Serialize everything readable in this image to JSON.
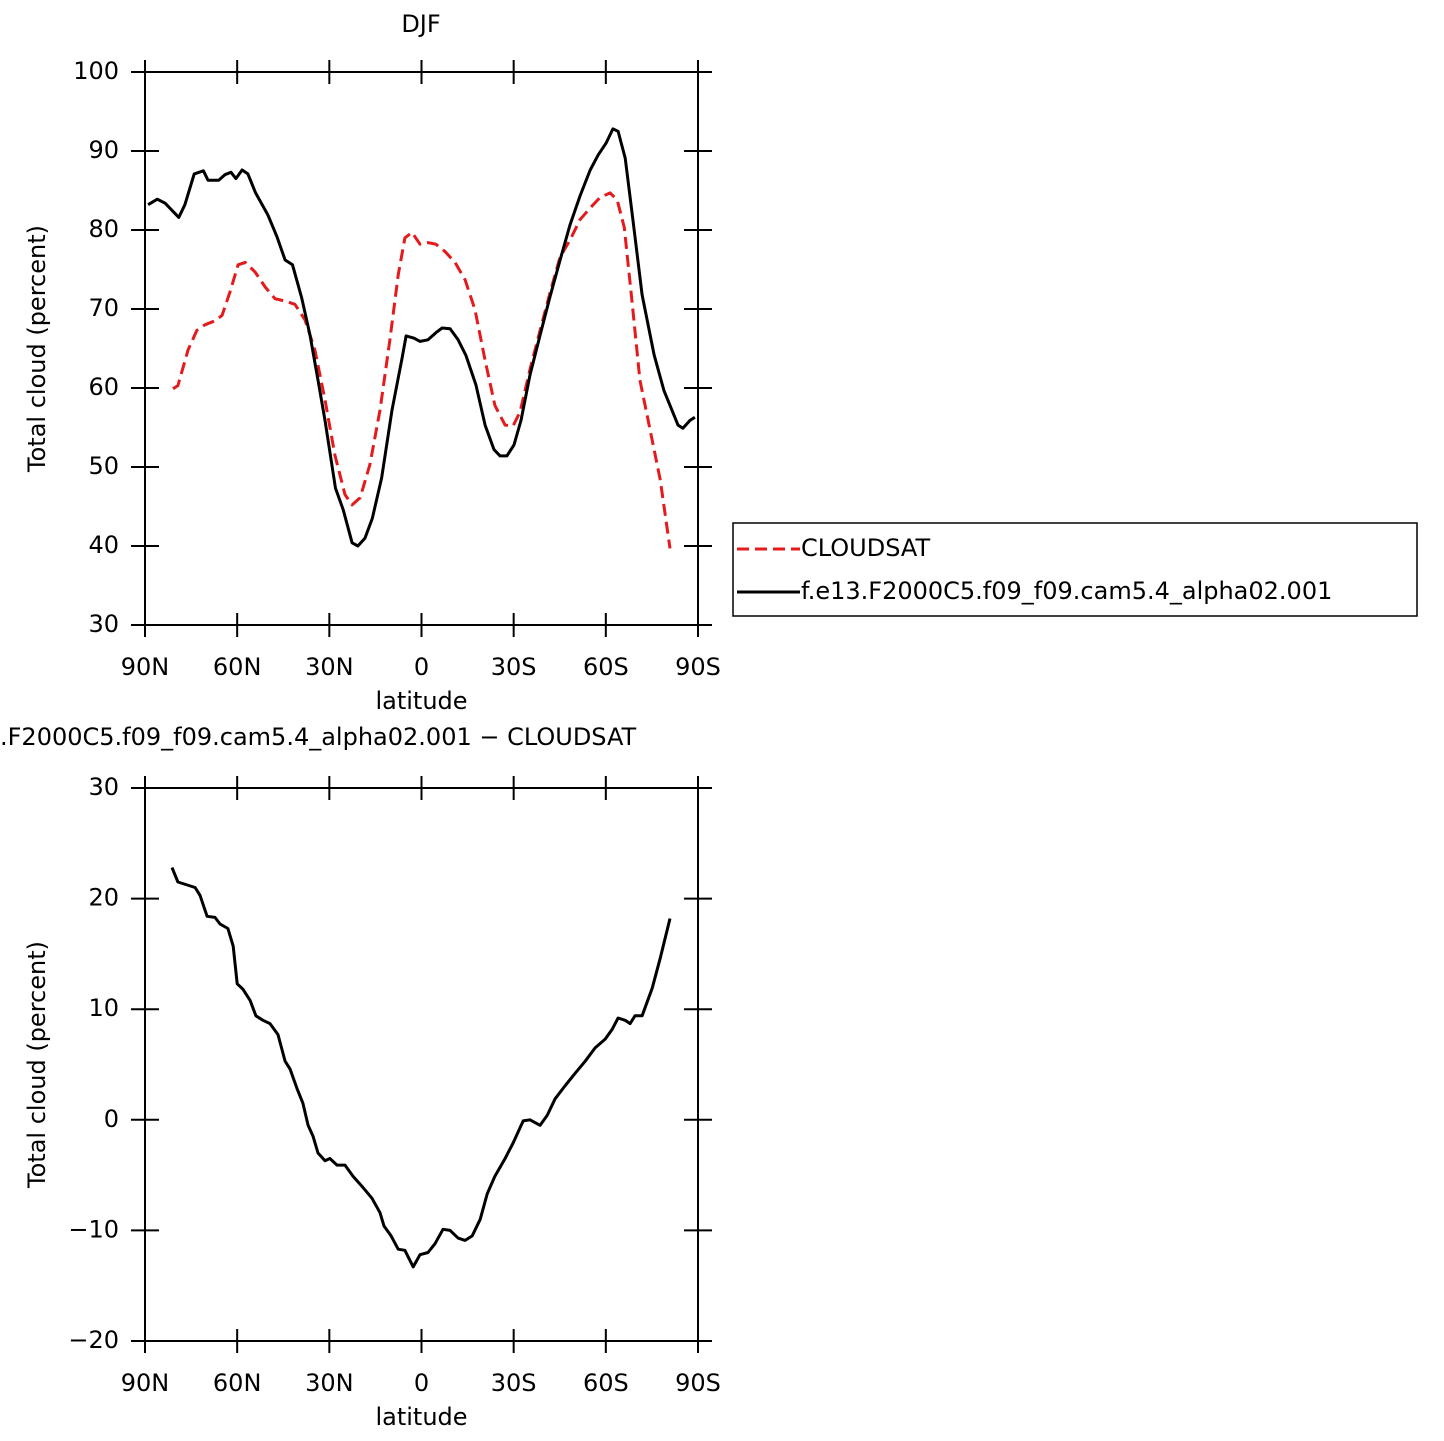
{
  "chart_data": [
    {
      "type": "line",
      "title": "DJF",
      "xlabel": "latitude",
      "ylabel": "Total cloud (percent)",
      "xlim": [
        90,
        -90
      ],
      "xticks": [
        {
          "value": 90,
          "label": "90N"
        },
        {
          "value": 60,
          "label": "60N"
        },
        {
          "value": 30,
          "label": "30N"
        },
        0,
        {
          "value": -30,
          "label": "30S"
        },
        {
          "value": -60,
          "label": "60S"
        },
        {
          "value": -90,
          "label": "90S"
        }
      ],
      "ylim": [
        30,
        100
      ],
      "yticks": [
        30,
        40,
        50,
        60,
        70,
        80,
        90,
        100
      ],
      "legend": "right",
      "series": [
        {
          "name": "CLOUDSAT",
          "color": "#e41a1c",
          "style": "dashed",
          "x": [
            80.9,
            79.3,
            76,
            73.1,
            70.5,
            67.2,
            64.9,
            62.3,
            59.7,
            57.4,
            54.2,
            50.9,
            47.7,
            44.4,
            41.2,
            37.9,
            34.7,
            31.4,
            28.2,
            24.9,
            22.6,
            20,
            16.8,
            13.5,
            10.3,
            7.6,
            5.4,
            3.1,
            0.5,
            -2.1,
            -4.7,
            -7.6,
            -10.9,
            -14.2,
            -17.4,
            -20.7,
            -23.9,
            -27.2,
            -29.8,
            -32.1,
            -35.3,
            -38.6,
            -41.8,
            -45.1,
            -48.3,
            -51.6,
            -54.9,
            -58.1,
            -61.4,
            -63.7,
            -66,
            -68.5,
            -71.1,
            -74.4,
            -77.7,
            -80.9
          ],
          "values": [
            59.9,
            60.3,
            64.8,
            67.3,
            68,
            68.5,
            69.2,
            72.2,
            75.6,
            75.9,
            74.7,
            72.8,
            71.3,
            71,
            70.6,
            68.6,
            64.8,
            58.5,
            51.5,
            46.5,
            45.2,
            46.1,
            50.3,
            57.2,
            66.1,
            74.3,
            79,
            79.7,
            78.2,
            78.4,
            78.2,
            77.3,
            75.9,
            73.7,
            69.9,
            63.5,
            57.8,
            55.3,
            55.2,
            57,
            62.3,
            67.3,
            72,
            76.6,
            78.7,
            81.3,
            82.8,
            84.1,
            84.7,
            83.8,
            80.3,
            71.1,
            61,
            54.7,
            48.4,
            39.7
          ]
        },
        {
          "name": "f.e13.F2000C5.f09_f09.cam5.4_alpha02.001",
          "color": "#000000",
          "style": "solid",
          "x": [
            89,
            86,
            83.5,
            79,
            77,
            74,
            71,
            69.5,
            66,
            64,
            62,
            60.4,
            58.4,
            56.5,
            54,
            50,
            47,
            44.4,
            42,
            39,
            36.3,
            33.7,
            31.4,
            28,
            25.5,
            22.6,
            20.7,
            18.4,
            16,
            13,
            9.6,
            6.3,
            5,
            2.4,
            0.5,
            -2.1,
            -4.7,
            -6.7,
            -9.3,
            -11.9,
            -14.5,
            -17.7,
            -20.7,
            -23.6,
            -25.6,
            -27.8,
            -30.1,
            -32.4,
            -35.3,
            -38.6,
            -41.8,
            -45.1,
            -48.3,
            -51.6,
            -54.9,
            -57.5,
            -60.1,
            -62.3,
            -64,
            -66.3,
            -68.8,
            -71.8,
            -75.7,
            -78.9,
            -81.5,
            -83.5,
            -85.1,
            -87.4,
            -89
          ],
          "values": [
            83.2,
            83.9,
            83.4,
            81.6,
            83.2,
            87.1,
            87.5,
            86.3,
            86.3,
            87,
            87.3,
            86.5,
            87.6,
            87.1,
            84.7,
            81.9,
            79.1,
            76.2,
            75.6,
            71.4,
            66.7,
            61,
            55.9,
            47.3,
            44.6,
            40.4,
            40,
            41,
            43.5,
            48.6,
            57.2,
            63.8,
            66.6,
            66.3,
            65.9,
            66.1,
            67,
            67.6,
            67.5,
            66.1,
            64.1,
            60.4,
            55.3,
            52.2,
            51.4,
            51.4,
            52.8,
            55.9,
            61.6,
            66.7,
            71.5,
            76.2,
            80.6,
            84.3,
            87.6,
            89.5,
            91,
            92.8,
            92.5,
            89.1,
            81.3,
            71.8,
            64.2,
            59.7,
            57.2,
            55.3,
            54.9,
            55.9,
            56.3
          ]
        }
      ]
    },
    {
      "type": "line",
      "title": ".F2000C5.f09_f09.cam5.4_alpha02.001 − CLOUDSAT",
      "xlabel": "latitude",
      "ylabel": "Total cloud (percent)",
      "xlim": [
        90,
        -90
      ],
      "xticks": [
        {
          "value": 90,
          "label": "90N"
        },
        {
          "value": 60,
          "label": "60N"
        },
        {
          "value": 30,
          "label": "30N"
        },
        0,
        {
          "value": -30,
          "label": "30S"
        },
        {
          "value": -60,
          "label": "60S"
        },
        {
          "value": -90,
          "label": "90S"
        }
      ],
      "ylim": [
        -20,
        30
      ],
      "yticks": [
        {
          "value": -20,
          "label": "−20"
        },
        {
          "value": -10,
          "label": "−10"
        },
        0,
        10,
        20,
        30
      ],
      "series": [
        {
          "color": "#000000",
          "style": "solid",
          "x": [
            81.2,
            79.3,
            73.7,
            72.1,
            69.8,
            67.2,
            65.6,
            63,
            61.3,
            60,
            58.1,
            55.8,
            53.9,
            51.6,
            49.3,
            46.7,
            44.4,
            42.8,
            40.5,
            38.6,
            36.9,
            35.3,
            33.7,
            31.4,
            29.8,
            27.5,
            24.9,
            22.3,
            19.4,
            16.1,
            13.5,
            12.2,
            9.9,
            7.6,
            5.4,
            2.7,
            0.5,
            -2.1,
            -4.4,
            -7,
            -9.3,
            -11.9,
            -14.2,
            -16.5,
            -19.1,
            -21.4,
            -23.9,
            -27.2,
            -29.8,
            -33.1,
            -35.3,
            -38.6,
            -40.9,
            -43.5,
            -46.8,
            -50,
            -53.3,
            -56.5,
            -59.8,
            -62.1,
            -64,
            -66.3,
            -67.9,
            -69.5,
            -71.8,
            -75.1,
            -77.7,
            -80.9
          ],
          "values": [
            22.8,
            21.5,
            21,
            20.3,
            18.4,
            18.3,
            17.7,
            17.3,
            15.7,
            12.3,
            11.8,
            10.8,
            9.4,
            9,
            8.7,
            7.7,
            5.3,
            4.6,
            2.8,
            1.5,
            -0.5,
            -1.5,
            -3,
            -3.7,
            -3.5,
            -4.1,
            -4.1,
            -5.1,
            -6,
            -7.1,
            -8.4,
            -9.6,
            -10.5,
            -11.7,
            -11.8,
            -13.3,
            -12.2,
            -12,
            -11.2,
            -9.9,
            -10,
            -10.7,
            -10.9,
            -10.5,
            -9,
            -6.7,
            -5.1,
            -3.5,
            -2.1,
            -0.1,
            0,
            -0.5,
            0.4,
            1.9,
            3.1,
            4.2,
            5.3,
            6.5,
            7.3,
            8.2,
            9.2,
            9,
            8.7,
            9.4,
            9.4,
            11.9,
            14.6,
            18.2
          ]
        }
      ]
    }
  ]
}
